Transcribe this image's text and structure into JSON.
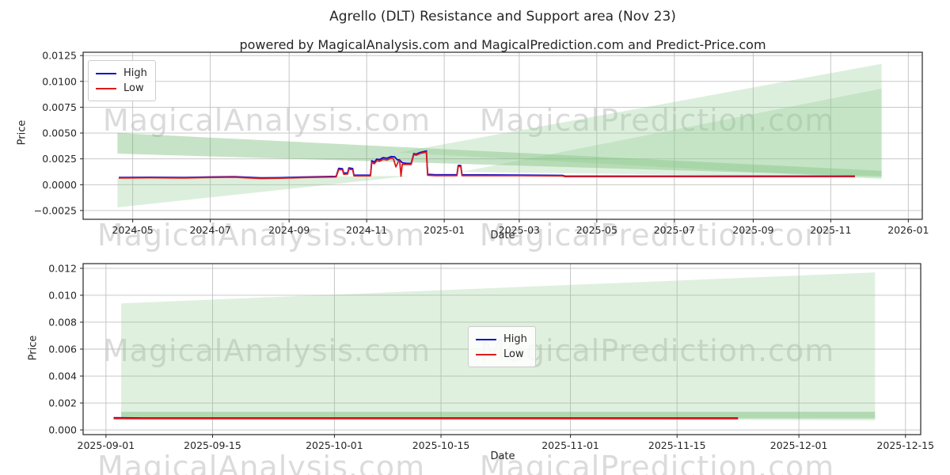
{
  "page": {
    "title": "Agrello (DLT) Resistance and Support area (Nov 23)",
    "subtitle": "powered by MagicalAnalysis.com and MagicalPrediction.com and Predict-Price.com"
  },
  "colors": {
    "high_line": "#0b0bd6",
    "low_line": "#dc1c1c",
    "band_green": "#5fae5f",
    "fan_green": "#8cc98c",
    "grid": "#c0c0c0",
    "spine": "#262626",
    "watermark_gray": "#bebebe"
  },
  "legend": {
    "high_label": "High",
    "low_label": "Low"
  },
  "watermark_texts": [
    "MagicalAnalysis.com",
    "MagicalPrediction.com"
  ],
  "chart_data": [
    {
      "type": "line",
      "title": "Agrello (DLT) Resistance and Support area (Nov 23)",
      "xlabel": "Date",
      "ylabel": "Price",
      "grid": true,
      "legend_position": "upper-left",
      "x_domain": [
        "2024-03-23",
        "2026-01-12"
      ],
      "y_domain": [
        -0.00335,
        0.01282
      ],
      "x_ticks": [
        {
          "date": "2024-05-01",
          "label": "2024-05"
        },
        {
          "date": "2024-07-01",
          "label": "2024-07"
        },
        {
          "date": "2024-09-01",
          "label": "2024-09"
        },
        {
          "date": "2024-11-01",
          "label": "2024-11"
        },
        {
          "date": "2025-01-01",
          "label": "2025-01"
        },
        {
          "date": "2025-03-01",
          "label": "2025-03"
        },
        {
          "date": "2025-05-01",
          "label": "2025-05"
        },
        {
          "date": "2025-07-01",
          "label": "2025-07"
        },
        {
          "date": "2025-09-01",
          "label": "2025-09"
        },
        {
          "date": "2025-11-01",
          "label": "2025-11"
        },
        {
          "date": "2026-01-01",
          "label": "2026-01"
        }
      ],
      "y_ticks": [
        {
          "value": -0.0025,
          "label": "−0.0025"
        },
        {
          "value": 0.0,
          "label": "0.0000"
        },
        {
          "value": 0.0025,
          "label": "0.0025"
        },
        {
          "value": 0.005,
          "label": "0.0050"
        },
        {
          "value": 0.0075,
          "label": "0.0075"
        },
        {
          "value": 0.01,
          "label": "0.0100"
        },
        {
          "value": 0.0125,
          "label": "0.0125"
        }
      ],
      "fills": [
        {
          "name": "resistance-band",
          "color": "#5fae5f",
          "opacity": 0.35,
          "upper": [
            [
              "2024-04-19",
              0.005
            ],
            [
              "2025-12-11",
              0.00135
            ]
          ],
          "lower": [
            [
              "2024-04-19",
              0.003
            ],
            [
              "2025-12-11",
              0.0008
            ]
          ]
        },
        {
          "name": "support-triangle",
          "color": "#8cc98c",
          "opacity": 0.3,
          "upper": [
            [
              "2024-04-19",
              0.00065
            ],
            [
              "2024-12-05",
              0.00085
            ]
          ],
          "lower": [
            [
              "2024-04-19",
              -0.0022
            ],
            [
              "2024-12-05",
              0.00085
            ]
          ]
        },
        {
          "name": "forecast-fan-a",
          "color": "#8cc98c",
          "opacity": 0.3,
          "upper": [
            [
              "2024-11-26",
              0.0031
            ],
            [
              "2025-12-11",
              0.0117
            ]
          ],
          "lower": [
            [
              "2024-11-26",
              0.0031
            ],
            [
              "2025-12-11",
              0.00055
            ]
          ]
        },
        {
          "name": "forecast-fan-b",
          "color": "#8cc98c",
          "opacity": 0.28,
          "upper": [
            [
              "2025-01-15",
              0.00125
            ],
            [
              "2025-12-11",
              0.0093
            ]
          ],
          "lower": [
            [
              "2025-01-15",
              0.00125
            ],
            [
              "2025-12-11",
              0.0007
            ]
          ]
        }
      ],
      "series": [
        {
          "name": "High",
          "color": "#0b0bd6",
          "width": 1.8,
          "points": [
            [
              "2024-04-20",
              0.0007
            ],
            [
              "2024-05-15",
              0.00072
            ],
            [
              "2024-06-10",
              0.0007
            ],
            [
              "2024-07-01",
              0.00075
            ],
            [
              "2024-07-20",
              0.00078
            ],
            [
              "2024-08-10",
              0.00066
            ],
            [
              "2024-08-25",
              0.00068
            ],
            [
              "2024-09-15",
              0.00075
            ],
            [
              "2024-10-08",
              0.0008
            ],
            [
              "2024-10-10",
              0.00158
            ],
            [
              "2024-10-13",
              0.00155
            ],
            [
              "2024-10-14",
              0.00112
            ],
            [
              "2024-10-17",
              0.00114
            ],
            [
              "2024-10-18",
              0.00162
            ],
            [
              "2024-10-21",
              0.00156
            ],
            [
              "2024-10-22",
              0.00092
            ],
            [
              "2024-11-04",
              0.00092
            ],
            [
              "2024-11-05",
              0.00232
            ],
            [
              "2024-11-07",
              0.00218
            ],
            [
              "2024-11-09",
              0.00248
            ],
            [
              "2024-11-11",
              0.00242
            ],
            [
              "2024-11-14",
              0.00262
            ],
            [
              "2024-11-17",
              0.00256
            ],
            [
              "2024-11-20",
              0.00272
            ],
            [
              "2024-11-23",
              0.0027
            ],
            [
              "2024-11-25",
              0.00242
            ],
            [
              "2024-11-27",
              0.00238
            ],
            [
              "2024-11-29",
              0.00212
            ],
            [
              "2024-12-03",
              0.00206
            ],
            [
              "2024-12-06",
              0.00206
            ],
            [
              "2024-12-08",
              0.003
            ],
            [
              "2024-12-10",
              0.00296
            ],
            [
              "2024-12-13",
              0.00312
            ],
            [
              "2024-12-16",
              0.0032
            ],
            [
              "2024-12-18",
              0.00326
            ],
            [
              "2024-12-19",
              0.001
            ],
            [
              "2024-12-25",
              0.00096
            ],
            [
              "2025-01-05",
              0.00096
            ],
            [
              "2025-01-11",
              0.00096
            ],
            [
              "2025-01-12",
              0.00186
            ],
            [
              "2025-01-14",
              0.00186
            ],
            [
              "2025-01-15",
              0.00096
            ],
            [
              "2025-02-01",
              0.00095
            ],
            [
              "2025-03-01",
              0.00093
            ],
            [
              "2025-04-04",
              0.0009
            ],
            [
              "2025-04-06",
              0.00083
            ],
            [
              "2025-06-01",
              0.00083
            ],
            [
              "2025-08-01",
              0.00083
            ],
            [
              "2025-10-01",
              0.00083
            ],
            [
              "2025-11-20",
              0.00083
            ]
          ]
        },
        {
          "name": "Low",
          "color": "#dc1c1c",
          "width": 1.8,
          "points": [
            [
              "2024-04-20",
              0.00065
            ],
            [
              "2024-05-15",
              0.00067
            ],
            [
              "2024-06-10",
              0.00065
            ],
            [
              "2024-07-01",
              0.0007
            ],
            [
              "2024-07-20",
              0.00073
            ],
            [
              "2024-08-10",
              0.0006
            ],
            [
              "2024-08-25",
              0.00063
            ],
            [
              "2024-09-15",
              0.0007
            ],
            [
              "2024-10-08",
              0.00075
            ],
            [
              "2024-10-10",
              0.00146
            ],
            [
              "2024-10-13",
              0.00144
            ],
            [
              "2024-10-14",
              0.00101
            ],
            [
              "2024-10-17",
              0.00103
            ],
            [
              "2024-10-18",
              0.0015
            ],
            [
              "2024-10-21",
              0.00145
            ],
            [
              "2024-10-22",
              0.00086
            ],
            [
              "2024-11-04",
              0.00086
            ],
            [
              "2024-11-05",
              0.00216
            ],
            [
              "2024-11-07",
              0.00202
            ],
            [
              "2024-11-09",
              0.00232
            ],
            [
              "2024-11-11",
              0.00226
            ],
            [
              "2024-11-14",
              0.00246
            ],
            [
              "2024-11-17",
              0.0024
            ],
            [
              "2024-11-20",
              0.00256
            ],
            [
              "2024-11-22",
              0.00252
            ],
            [
              "2024-11-24",
              0.00172
            ],
            [
              "2024-11-26",
              0.00226
            ],
            [
              "2024-11-27",
              0.0023
            ],
            [
              "2024-11-28",
              0.00082
            ],
            [
              "2024-11-29",
              0.00196
            ],
            [
              "2024-12-03",
              0.00196
            ],
            [
              "2024-12-06",
              0.00196
            ],
            [
              "2024-12-08",
              0.0029
            ],
            [
              "2024-12-10",
              0.00286
            ],
            [
              "2024-12-13",
              0.00302
            ],
            [
              "2024-12-16",
              0.0031
            ],
            [
              "2024-12-18",
              0.00316
            ],
            [
              "2024-12-19",
              0.00091
            ],
            [
              "2024-12-25",
              0.00088
            ],
            [
              "2025-01-05",
              0.00088
            ],
            [
              "2025-01-11",
              0.00088
            ],
            [
              "2025-01-12",
              0.00176
            ],
            [
              "2025-01-14",
              0.00176
            ],
            [
              "2025-01-15",
              0.00088
            ],
            [
              "2025-02-01",
              0.00088
            ],
            [
              "2025-03-01",
              0.00087
            ],
            [
              "2025-04-04",
              0.00085
            ],
            [
              "2025-04-06",
              0.00078
            ],
            [
              "2025-06-01",
              0.00078
            ],
            [
              "2025-08-01",
              0.00078
            ],
            [
              "2025-10-01",
              0.00078
            ],
            [
              "2025-11-20",
              0.00078
            ]
          ]
        }
      ]
    },
    {
      "type": "line",
      "title": "",
      "xlabel": "Date",
      "ylabel": "Price",
      "grid": true,
      "legend_position": "center",
      "x_domain": [
        "2025-08-29",
        "2025-12-17"
      ],
      "y_domain": [
        -0.00035,
        0.01235
      ],
      "x_ticks": [
        {
          "date": "2025-09-01",
          "label": "2025-09-01"
        },
        {
          "date": "2025-09-15",
          "label": "2025-09-15"
        },
        {
          "date": "2025-10-01",
          "label": "2025-10-01"
        },
        {
          "date": "2025-10-15",
          "label": "2025-10-15"
        },
        {
          "date": "2025-11-01",
          "label": "2025-11-01"
        },
        {
          "date": "2025-11-15",
          "label": "2025-11-15"
        },
        {
          "date": "2025-12-01",
          "label": "2025-12-01"
        },
        {
          "date": "2025-12-15",
          "label": "2025-12-15"
        }
      ],
      "y_ticks": [
        {
          "value": 0.0,
          "label": "0.000"
        },
        {
          "value": 0.002,
          "label": "0.002"
        },
        {
          "value": 0.004,
          "label": "0.004"
        },
        {
          "value": 0.006,
          "label": "0.006"
        },
        {
          "value": 0.008,
          "label": "0.008"
        },
        {
          "value": 0.01,
          "label": "0.010"
        },
        {
          "value": 0.012,
          "label": "0.012"
        }
      ],
      "fills": [
        {
          "name": "forecast-fan",
          "color": "#8cc98c",
          "opacity": 0.28,
          "upper": [
            [
              "2025-09-03",
              0.0094
            ],
            [
              "2025-12-11",
              0.0117
            ]
          ],
          "lower": [
            [
              "2025-09-03",
              0.0009
            ],
            [
              "2025-12-11",
              0.0007
            ]
          ]
        },
        {
          "name": "support-band",
          "color": "#5fae5f",
          "opacity": 0.35,
          "upper": [
            [
              "2025-09-03",
              0.00135
            ],
            [
              "2025-12-11",
              0.00135
            ]
          ],
          "lower": [
            [
              "2025-09-03",
              0.00085
            ],
            [
              "2025-12-11",
              0.00085
            ]
          ]
        }
      ],
      "series": [
        {
          "name": "High",
          "color": "#0b0bd6",
          "width": 2,
          "points": [
            [
              "2025-09-02",
              0.0009
            ],
            [
              "2025-09-06",
              0.00088
            ],
            [
              "2025-11-23",
              0.00088
            ]
          ]
        },
        {
          "name": "Low",
          "color": "#dc1c1c",
          "width": 2,
          "points": [
            [
              "2025-09-02",
              0.00085
            ],
            [
              "2025-09-06",
              0.00084
            ],
            [
              "2025-11-23",
              0.00084
            ]
          ]
        }
      ]
    }
  ]
}
